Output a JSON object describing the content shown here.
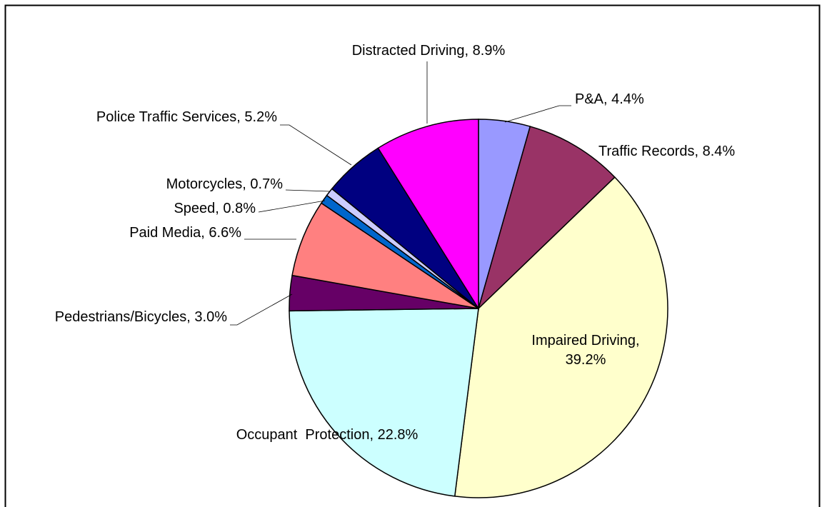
{
  "chart_data": {
    "type": "pie",
    "categories": [
      "P&A",
      "Traffic Records",
      "Impaired Driving",
      "Occupant  Protection",
      "Pedestrians/Bicycles",
      "Paid Media",
      "Speed",
      "Motorcycles",
      "Police Traffic Services",
      "Distracted Driving"
    ],
    "values": [
      4.4,
      8.4,
      39.2,
      22.8,
      3.0,
      6.6,
      0.8,
      0.7,
      5.2,
      8.9
    ],
    "value_labels": [
      "4.4%",
      "8.4%",
      "39.2%",
      "22.8%",
      "3.0%",
      "6.6%",
      "0.8%",
      "0.7%",
      "5.2%",
      "8.9%"
    ],
    "colors": [
      "#9999ff",
      "#993366",
      "#ffffcc",
      "#ccffff",
      "#660066",
      "#ff8080",
      "#0066cc",
      "#ccccff",
      "#000080",
      "#ff00ff"
    ]
  }
}
